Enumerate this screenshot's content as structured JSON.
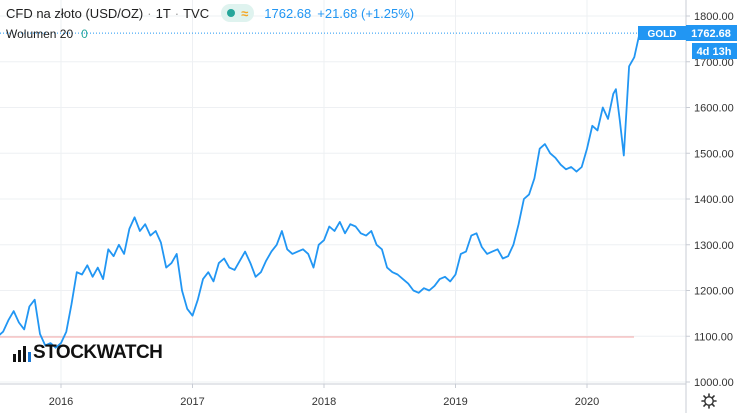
{
  "legend": {
    "symbol": "CFD na złoto (USD/OZ)",
    "interval": "1T",
    "exchange": "TVC",
    "last": "1762.68",
    "change": "+21.68 (+1.25%)"
  },
  "volume_legend": {
    "label": "Wolumen 20",
    "value": "0"
  },
  "badges": {
    "symbol_tag": "GOLD",
    "price": "1762.68",
    "countdown": "4d 13h"
  },
  "logo_text": "STOCKWATCH",
  "colors": {
    "line": "#2196f3",
    "pill_bg": "#dff3ef",
    "dot": "#26a69a",
    "wave": "#f5a623",
    "price_line": "#2196f3"
  },
  "icons": {
    "settings": "gear-icon",
    "logo": "bar-chart-logo-icon"
  },
  "chart_data": {
    "type": "line",
    "title": "CFD na złoto (USD/OZ)",
    "ylim": [
      980,
      1820
    ],
    "ylabel": "",
    "xlabel": "",
    "y_ticks": [
      1000,
      1100,
      1200,
      1300,
      1400,
      1500,
      1600,
      1700,
      1800
    ],
    "y_tick_labels": [
      "1000.00",
      "1100.00",
      "1200.00",
      "1300.00",
      "1400.00",
      "1500.00",
      "1600.00",
      "1700.00",
      "1800.00"
    ],
    "x_ticks": [
      2016,
      2017,
      2018,
      2019,
      2020
    ],
    "x_tick_labels": [
      "2016",
      "2017",
      "2018",
      "2019",
      "2020"
    ],
    "last_price": 1762.68,
    "grid": true,
    "series": [
      {
        "x": [
          2015.0,
          2015.04,
          2015.08,
          2015.12,
          2015.16,
          2015.2,
          2015.24,
          2015.28,
          2015.32,
          2015.36,
          2015.4,
          2015.44,
          2015.48,
          2015.52,
          2015.56,
          2015.6,
          2015.64,
          2015.68,
          2015.72,
          2015.76,
          2015.8,
          2015.84,
          2015.88,
          2015.92,
          2015.96,
          2016.0,
          2016.04,
          2016.08,
          2016.12,
          2016.16,
          2016.2,
          2016.24,
          2016.28,
          2016.32,
          2016.36,
          2016.4,
          2016.44,
          2016.48,
          2016.52,
          2016.56,
          2016.6,
          2016.64,
          2016.68,
          2016.72,
          2016.76,
          2016.8,
          2016.84,
          2016.88,
          2016.92,
          2016.96,
          2017.0,
          2017.04,
          2017.08,
          2017.12,
          2017.16,
          2017.2,
          2017.24,
          2017.28,
          2017.32,
          2017.36,
          2017.4,
          2017.44,
          2017.48,
          2017.52,
          2017.56,
          2017.6,
          2017.64,
          2017.68,
          2017.72,
          2017.76,
          2017.8,
          2017.84,
          2017.88,
          2017.92,
          2017.96,
          2018.0,
          2018.04,
          2018.08,
          2018.12,
          2018.16,
          2018.2,
          2018.24,
          2018.28,
          2018.32,
          2018.36,
          2018.4,
          2018.44,
          2018.48,
          2018.52,
          2018.56,
          2018.6,
          2018.64,
          2018.68,
          2018.72,
          2018.76,
          2018.8,
          2018.84,
          2018.88,
          2018.92,
          2018.96,
          2019.0,
          2019.04,
          2019.08,
          2019.12,
          2019.16,
          2019.2,
          2019.24,
          2019.28,
          2019.32,
          2019.36,
          2019.4,
          2019.44,
          2019.48,
          2019.52,
          2019.56,
          2019.6,
          2019.64,
          2019.68,
          2019.72,
          2019.76,
          2019.8,
          2019.84,
          2019.88,
          2019.92,
          2019.96,
          2020.0,
          2020.04,
          2020.08,
          2020.12,
          2020.16,
          2020.2,
          2020.22,
          2020.25,
          2020.28,
          2020.32,
          2020.36,
          2020.4
        ],
        "y": [
          1095,
          1130,
          1165,
          1140,
          1170,
          1155,
          1175,
          1160,
          1110,
          1095,
          1100,
          1085,
          1095,
          1100,
          1110,
          1135,
          1155,
          1130,
          1115,
          1165,
          1180,
          1105,
          1080,
          1085,
          1075,
          1085,
          1110,
          1170,
          1240,
          1235,
          1255,
          1230,
          1250,
          1225,
          1290,
          1275,
          1300,
          1280,
          1335,
          1360,
          1330,
          1345,
          1320,
          1330,
          1305,
          1250,
          1260,
          1280,
          1200,
          1160,
          1145,
          1180,
          1225,
          1240,
          1220,
          1260,
          1270,
          1250,
          1245,
          1265,
          1285,
          1260,
          1230,
          1240,
          1265,
          1285,
          1300,
          1330,
          1290,
          1280,
          1285,
          1290,
          1280,
          1250,
          1300,
          1310,
          1340,
          1330,
          1350,
          1325,
          1345,
          1340,
          1325,
          1320,
          1330,
          1300,
          1290,
          1250,
          1240,
          1235,
          1225,
          1215,
          1200,
          1195,
          1205,
          1200,
          1210,
          1225,
          1230,
          1220,
          1235,
          1280,
          1285,
          1320,
          1325,
          1295,
          1280,
          1285,
          1290,
          1270,
          1275,
          1300,
          1345,
          1400,
          1410,
          1445,
          1510,
          1520,
          1500,
          1490,
          1475,
          1465,
          1470,
          1460,
          1470,
          1510,
          1560,
          1550,
          1600,
          1575,
          1630,
          1640,
          1570,
          1495,
          1690,
          1710,
          1762.68
        ]
      }
    ]
  }
}
